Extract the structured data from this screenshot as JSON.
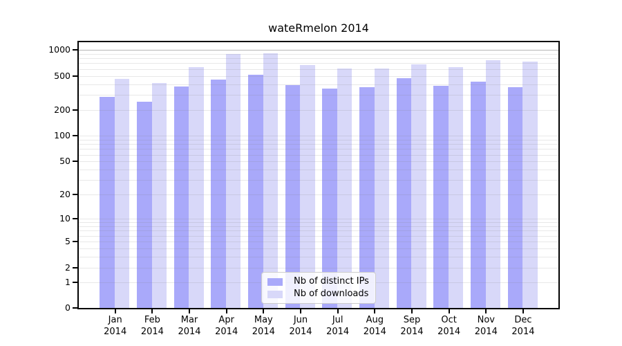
{
  "title": "wateRmelon 2014",
  "chart_data": {
    "type": "bar",
    "title": "wateRmelon 2014",
    "months": [
      "Jan",
      "Feb",
      "Mar",
      "Apr",
      "May",
      "Jun",
      "Jul",
      "Aug",
      "Sep",
      "Oct",
      "Nov",
      "Dec"
    ],
    "year": "2014",
    "series": [
      {
        "name": "Nb of distinct IPs",
        "key": "distinct-ips",
        "color": "#a9a9fa",
        "values": [
          286,
          251,
          375,
          453,
          513,
          390,
          354,
          368,
          467,
          381,
          431,
          372
        ]
      },
      {
        "name": "Nb of downloads",
        "key": "downloads",
        "color": "#d8d8f9",
        "values": [
          461,
          413,
          636,
          898,
          914,
          670,
          606,
          606,
          685,
          637,
          766,
          729
        ]
      }
    ],
    "y_axis": {
      "ticks": [
        1000,
        500,
        200,
        100,
        50,
        20,
        10,
        5,
        2,
        1,
        0
      ],
      "scale": "log10(value+1)",
      "range": [
        0,
        1100
      ]
    },
    "grid": {
      "horizontal": true,
      "minor_log_lines": [
        1,
        2,
        3,
        4,
        5,
        6,
        7,
        8,
        9,
        10,
        20,
        30,
        40,
        50,
        60,
        70,
        80,
        90,
        100,
        200,
        300,
        400,
        500,
        600,
        700,
        800,
        900,
        1000
      ],
      "emphasized_line": 1000
    },
    "legend_position": "inside-bottom-center"
  },
  "colors": {
    "bar_dark": "#a9a9fa",
    "bar_light": "#d8d8f9",
    "grid": "rgba(128,128,128,0.18)",
    "grid_major": "rgba(90,90,90,0.45)",
    "spine": "#000000",
    "background": "#ffffff",
    "legend_border": "#cccccc"
  }
}
